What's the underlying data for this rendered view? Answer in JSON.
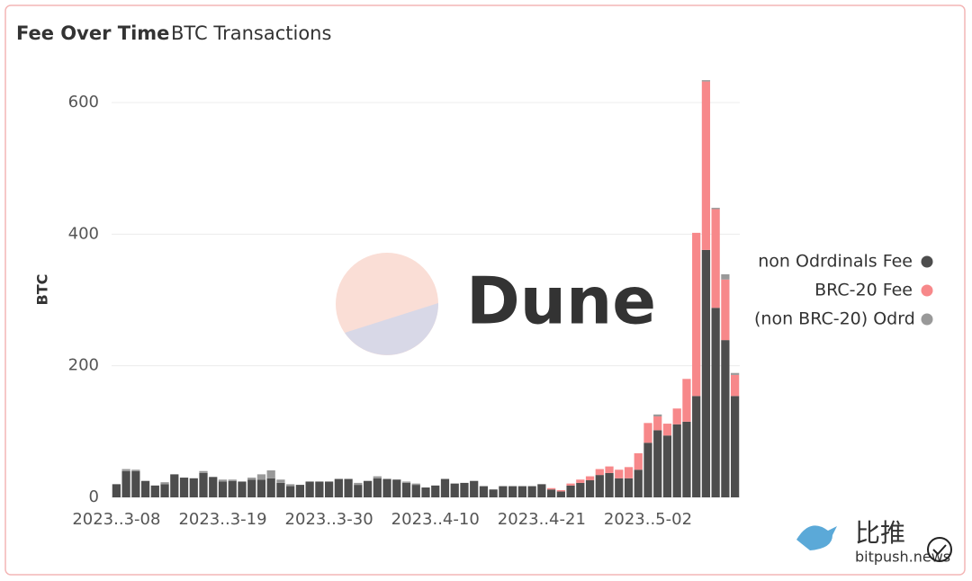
{
  "chart_data": {
    "type": "bar",
    "stacked": true,
    "title": "Fee Over Time",
    "subtitle": "BTC Transactions",
    "y_label": "BTC",
    "categories": [
      "2023..3-08",
      null,
      null,
      null,
      null,
      null,
      null,
      null,
      null,
      null,
      null,
      "2023..3-19",
      null,
      null,
      null,
      null,
      null,
      null,
      null,
      null,
      null,
      null,
      "2023..3-30",
      null,
      null,
      null,
      null,
      null,
      null,
      null,
      null,
      null,
      null,
      "2023..4-10",
      null,
      null,
      null,
      null,
      null,
      null,
      null,
      null,
      null,
      null,
      "2023..4-21",
      null,
      null,
      null,
      null,
      null,
      null,
      null,
      null,
      null,
      null,
      "2023..5-02",
      null,
      null,
      null,
      null,
      null,
      null,
      null,
      null,
      null
    ],
    "series": [
      {
        "name": "non Odrdinals Fee",
        "color": "#4d4d4d",
        "values": [
          20,
          40,
          40,
          25,
          18,
          20,
          35,
          30,
          29,
          37,
          31,
          24,
          25,
          24,
          27,
          27,
          29,
          22,
          17,
          19,
          24,
          24,
          24,
          28,
          28,
          19,
          25,
          29,
          28,
          27,
          22,
          19,
          15,
          18,
          28,
          21,
          22,
          25,
          17,
          12,
          17,
          17,
          17,
          17,
          20,
          12,
          9,
          18,
          22,
          26,
          34,
          37,
          29,
          29,
          42,
          83,
          102,
          94,
          111,
          115,
          154,
          376,
          288,
          239,
          154
        ]
      },
      {
        "name": "BRC-20 Fee",
        "color": "#f7888a",
        "values": [
          0,
          0,
          0,
          0,
          0,
          0,
          0,
          0,
          0,
          0,
          0,
          0,
          0,
          0,
          0,
          0,
          0,
          0,
          0,
          0,
          0,
          0,
          0,
          0,
          0,
          0,
          0,
          0,
          0,
          0,
          0,
          0,
          0,
          0,
          0,
          0,
          0,
          0,
          0,
          0,
          0,
          0,
          0,
          0,
          0,
          2,
          2,
          3,
          5,
          6,
          9,
          10,
          13,
          17,
          25,
          30,
          21,
          18,
          24,
          65,
          248,
          256,
          150,
          92,
          32
        ]
      },
      {
        "name": "(non BRC-20) Odrdinals Fee",
        "color": "#999999",
        "values": [
          0,
          3,
          2,
          0,
          0,
          3,
          0,
          0,
          0,
          3,
          0,
          3,
          2,
          0,
          3,
          8,
          12,
          5,
          3,
          0,
          0,
          0,
          0,
          0,
          0,
          3,
          0,
          3,
          0,
          0,
          2,
          2,
          0,
          0,
          0,
          0,
          0,
          0,
          0,
          0,
          0,
          0,
          0,
          0,
          0,
          0,
          0,
          0,
          0,
          0,
          0,
          0,
          0,
          0,
          0,
          0,
          3,
          0,
          0,
          0,
          0,
          2,
          2,
          8,
          3
        ]
      }
    ],
    "ylim": [
      0,
      600
    ],
    "yticks": [
      0,
      200,
      400,
      600
    ],
    "grid": true,
    "legend": "right"
  },
  "watermarks": [
    "Dune",
    "比推",
    "bitpush.news"
  ]
}
